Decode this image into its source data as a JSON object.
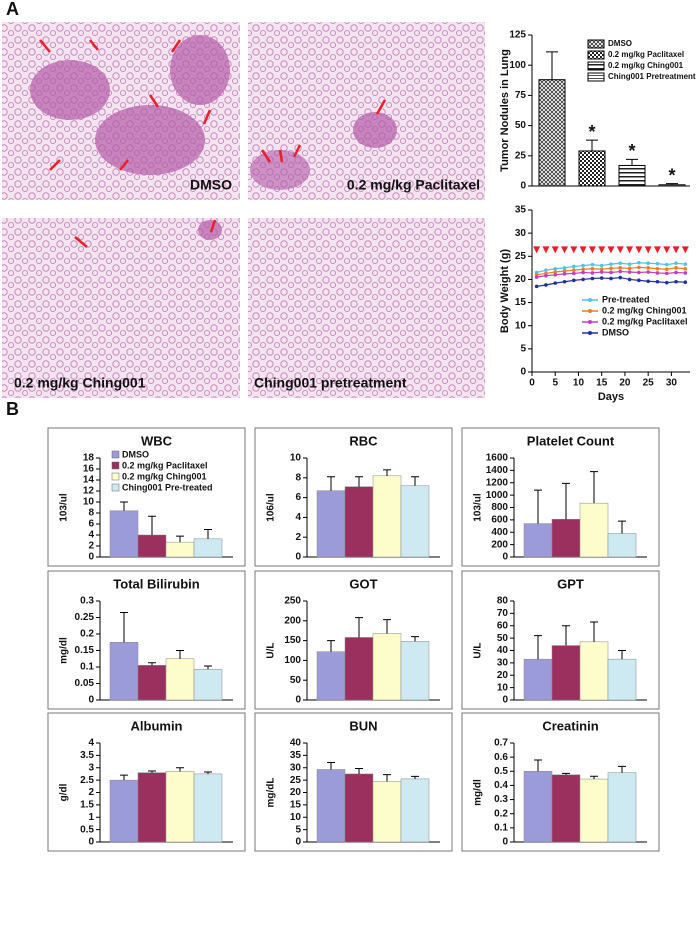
{
  "panels": {
    "labels": [
      "A",
      "B"
    ],
    "images": [
      "DMSO",
      "0.2 mg/kg Paclitaxel",
      "0.2 mg/kg Ching001",
      "Ching001 pretreatment"
    ]
  },
  "chart_data": [
    {
      "type": "bar",
      "ylabel": "Tumor Nodules in Lung",
      "categories": [
        "DMSO",
        "0.2 mg/kg Paclitaxel",
        "0.2 mg/kg Ching001",
        "Ching001 Pretreatment"
      ],
      "values": [
        88,
        29,
        17,
        1
      ],
      "errors": [
        23,
        9,
        5,
        1
      ],
      "annotations": [
        null,
        "*",
        "*",
        "*"
      ],
      "ylim": [
        0,
        125
      ],
      "yticks": [
        0,
        25,
        50,
        75,
        100,
        125
      ]
    },
    {
      "type": "line",
      "ylabel": "Body Weight (g)",
      "xlabel": "Days",
      "xlim": [
        0,
        34
      ],
      "xticks": [
        0,
        5,
        10,
        15,
        20,
        25,
        30
      ],
      "ylim": [
        0,
        35
      ],
      "yticks": [
        0,
        5,
        10,
        15,
        20,
        25,
        30,
        35
      ],
      "doses": {
        "x": [
          1,
          3,
          5,
          7,
          9,
          11,
          13,
          15,
          17,
          19,
          21,
          23,
          25,
          27,
          29,
          31,
          33
        ],
        "y": 26.5,
        "color": "#e8202a"
      },
      "series": [
        {
          "name": "Pre-treated",
          "color": "#4fc3e8",
          "x": [
            1,
            3,
            5,
            7,
            9,
            11,
            13,
            15,
            17,
            19,
            21,
            23,
            25,
            27,
            29,
            31,
            33
          ],
          "values": [
            21.5,
            22,
            22.3,
            22.5,
            22.8,
            23,
            23.2,
            23,
            23.3,
            23.5,
            23.3,
            23.6,
            23.5,
            23.4,
            23.2,
            23.5,
            23.3
          ]
        },
        {
          "name": "0.2 mg/kg Ching001",
          "color": "#f07c20",
          "x": [
            1,
            3,
            5,
            7,
            9,
            11,
            13,
            15,
            17,
            19,
            21,
            23,
            25,
            27,
            29,
            31,
            33
          ],
          "values": [
            21,
            21.3,
            21.6,
            21.8,
            22,
            22.2,
            22.3,
            22.2,
            22.4,
            22.5,
            22.4,
            22.6,
            22.5,
            22.3,
            22.2,
            22.5,
            22.3
          ]
        },
        {
          "name": "0.2 mg/kg Paclitaxel",
          "color": "#c040c0",
          "x": [
            1,
            3,
            5,
            7,
            9,
            11,
            13,
            15,
            17,
            19,
            21,
            23,
            25,
            27,
            29,
            31,
            33
          ],
          "values": [
            20.5,
            20.8,
            21,
            21.2,
            21.3,
            21.5,
            21.4,
            21.6,
            21.5,
            21.7,
            21.6,
            21.5,
            21.6,
            21.4,
            21.3,
            21.5,
            21.4
          ]
        },
        {
          "name": "DMSO",
          "color": "#2030a0",
          "x": [
            1,
            3,
            5,
            7,
            9,
            11,
            13,
            15,
            17,
            19,
            21,
            23,
            25,
            27,
            29,
            31,
            33
          ],
          "values": [
            18.5,
            18.8,
            19.2,
            19.5,
            19.8,
            20,
            20.2,
            20.3,
            20.2,
            20.4,
            20,
            19.8,
            19.6,
            19.5,
            19.3,
            19.5,
            19.4
          ]
        }
      ]
    },
    {
      "type": "bar",
      "title": "WBC",
      "ylabel": "103/ul",
      "ylim": [
        0,
        18
      ],
      "yticks": [
        0,
        2,
        4,
        6,
        8,
        10,
        12,
        14,
        16,
        18
      ],
      "legend": true,
      "series": [
        {
          "name": "DMSO",
          "color": "#9b9bd9",
          "values": [
            8.4
          ],
          "errors": [
            1.6
          ]
        },
        {
          "name": "0.2 mg/kg Paclitaxel",
          "color": "#9b2f5e",
          "values": [
            4
          ],
          "errors": [
            3.4
          ]
        },
        {
          "name": "0.2 mg/kg Ching001",
          "color": "#fdfdcc",
          "values": [
            2.7
          ],
          "errors": [
            1.1
          ]
        },
        {
          "name": "Ching001 Pre-treated",
          "color": "#cdeaf2",
          "values": [
            3.3
          ],
          "errors": [
            1.7
          ]
        }
      ]
    },
    {
      "type": "bar",
      "title": "RBC",
      "ylabel": "106/ul",
      "ylim": [
        0,
        10
      ],
      "yticks": [
        0,
        2,
        4,
        6,
        8,
        10
      ],
      "series": [
        {
          "color": "#9b9bd9",
          "values": [
            6.7
          ],
          "errors": [
            1.4
          ]
        },
        {
          "color": "#9b2f5e",
          "values": [
            7.1
          ],
          "errors": [
            1
          ]
        },
        {
          "color": "#fdfdcc",
          "values": [
            8.2
          ],
          "errors": [
            0.6
          ]
        },
        {
          "color": "#cdeaf2",
          "values": [
            7.2
          ],
          "errors": [
            0.9
          ]
        }
      ]
    },
    {
      "type": "bar",
      "title": "Platelet Count",
      "ylabel": "103/ul",
      "ylim": [
        0,
        1600
      ],
      "yticks": [
        0,
        200,
        400,
        600,
        800,
        1000,
        1200,
        1400,
        1600
      ],
      "series": [
        {
          "color": "#9b9bd9",
          "values": [
            540
          ],
          "errors": [
            540
          ]
        },
        {
          "color": "#9b2f5e",
          "values": [
            610
          ],
          "errors": [
            580
          ]
        },
        {
          "color": "#fdfdcc",
          "values": [
            870
          ],
          "errors": [
            510
          ]
        },
        {
          "color": "#cdeaf2",
          "values": [
            380
          ],
          "errors": [
            200
          ]
        }
      ]
    },
    {
      "type": "bar",
      "title": "Total Bilirubin",
      "ylabel": "mg/dl",
      "ylim": [
        0,
        0.3
      ],
      "yticks": [
        0,
        0.05,
        0.1,
        0.15,
        0.2,
        0.25,
        0.3
      ],
      "series": [
        {
          "color": "#9b9bd9",
          "values": [
            0.175
          ],
          "errors": [
            0.09
          ]
        },
        {
          "color": "#9b2f5e",
          "values": [
            0.105
          ],
          "errors": [
            0.008
          ]
        },
        {
          "color": "#fdfdcc",
          "values": [
            0.125
          ],
          "errors": [
            0.025
          ]
        },
        {
          "color": "#cdeaf2",
          "values": [
            0.093
          ],
          "errors": [
            0.01
          ]
        }
      ]
    },
    {
      "type": "bar",
      "title": "GOT",
      "ylabel": "U/L",
      "ylim": [
        0,
        250
      ],
      "yticks": [
        0,
        50,
        100,
        150,
        200,
        250
      ],
      "series": [
        {
          "color": "#9b9bd9",
          "values": [
            122
          ],
          "errors": [
            28
          ]
        },
        {
          "color": "#9b2f5e",
          "values": [
            158
          ],
          "errors": [
            50
          ]
        },
        {
          "color": "#fdfdcc",
          "values": [
            168
          ],
          "errors": [
            35
          ]
        },
        {
          "color": "#cdeaf2",
          "values": [
            148
          ],
          "errors": [
            12
          ]
        }
      ]
    },
    {
      "type": "bar",
      "title": "GPT",
      "ylabel": "U/L",
      "ylim": [
        0,
        80
      ],
      "yticks": [
        0,
        10,
        20,
        30,
        40,
        50,
        60,
        70,
        80
      ],
      "series": [
        {
          "color": "#9b9bd9",
          "values": [
            33
          ],
          "errors": [
            19
          ]
        },
        {
          "color": "#9b2f5e",
          "values": [
            44
          ],
          "errors": [
            16
          ]
        },
        {
          "color": "#fdfdcc",
          "values": [
            47
          ],
          "errors": [
            16
          ]
        },
        {
          "color": "#cdeaf2",
          "values": [
            33
          ],
          "errors": [
            7
          ]
        }
      ]
    },
    {
      "type": "bar",
      "title": "Albumin",
      "ylabel": "g/dl",
      "ylim": [
        0,
        4
      ],
      "yticks": [
        0,
        0.5,
        1,
        1.5,
        2,
        2.5,
        3,
        3.5,
        4
      ],
      "series": [
        {
          "color": "#9b9bd9",
          "values": [
            2.5
          ],
          "errors": [
            0.2
          ]
        },
        {
          "color": "#9b2f5e",
          "values": [
            2.8
          ],
          "errors": [
            0.07
          ]
        },
        {
          "color": "#fdfdcc",
          "values": [
            2.85
          ],
          "errors": [
            0.15
          ]
        },
        {
          "color": "#cdeaf2",
          "values": [
            2.75
          ],
          "errors": [
            0.08
          ]
        }
      ]
    },
    {
      "type": "bar",
      "title": "BUN",
      "ylabel": "mg/dL",
      "ylim": [
        0,
        40
      ],
      "yticks": [
        0,
        5,
        10,
        15,
        20,
        25,
        30,
        35,
        40
      ],
      "series": [
        {
          "color": "#9b9bd9",
          "values": [
            29.3
          ],
          "errors": [
            2.8
          ]
        },
        {
          "color": "#9b2f5e",
          "values": [
            27.5
          ],
          "errors": [
            2.2
          ]
        },
        {
          "color": "#fdfdcc",
          "values": [
            24.5
          ],
          "errors": [
            2.7
          ]
        },
        {
          "color": "#cdeaf2",
          "values": [
            25.5
          ],
          "errors": [
            1
          ]
        }
      ]
    },
    {
      "type": "bar",
      "title": "Creatinin",
      "ylabel": "mg/dl",
      "ylim": [
        0,
        0.7
      ],
      "yticks": [
        0,
        0.1,
        0.2,
        0.3,
        0.4,
        0.5,
        0.6,
        0.7
      ],
      "series": [
        {
          "color": "#9b9bd9",
          "values": [
            0.5
          ],
          "errors": [
            0.08
          ]
        },
        {
          "color": "#9b2f5e",
          "values": [
            0.475
          ],
          "errors": [
            0.01
          ]
        },
        {
          "color": "#fdfdcc",
          "values": [
            0.445
          ],
          "errors": [
            0.02
          ]
        },
        {
          "color": "#cdeaf2",
          "values": [
            0.49
          ],
          "errors": [
            0.045
          ]
        }
      ]
    }
  ]
}
